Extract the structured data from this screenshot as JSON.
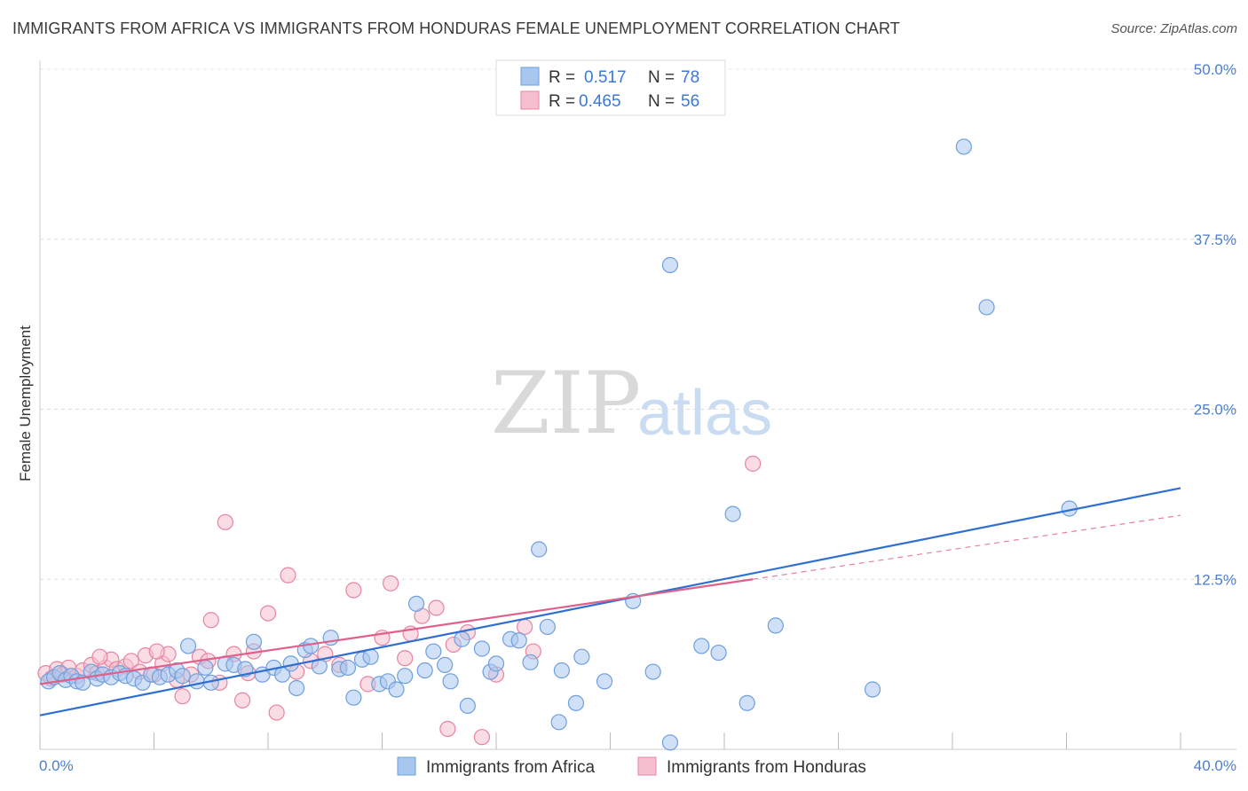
{
  "title": "IMMIGRANTS FROM AFRICA VS IMMIGRANTS FROM HONDURAS FEMALE UNEMPLOYMENT CORRELATION CHART",
  "source": "Source: ZipAtlas.com",
  "watermark": {
    "part1": "ZIP",
    "part2": "atlas"
  },
  "legend": {
    "r_label": "R =",
    "n_label": "N =",
    "rows": [
      {
        "r": "0.517",
        "n": "78"
      },
      {
        "r": "0.465",
        "n": "56"
      }
    ]
  },
  "colors": {
    "africa_fill": "#a9c7ee",
    "africa_stroke": "#6f9fdc",
    "africa_line": "#2f6fd0",
    "honduras_fill": "#f6bfd0",
    "honduras_stroke": "#e8849f",
    "honduras_line": "#e0608a",
    "tick_text": "#4a7fcf"
  },
  "chart_data": {
    "type": "scatter",
    "title": "IMMIGRANTS FROM AFRICA VS IMMIGRANTS FROM HONDURAS FEMALE UNEMPLOYMENT CORRELATION CHART",
    "xlabel": "",
    "ylabel": "Female Unemployment",
    "xlim": [
      0,
      40
    ],
    "ylim": [
      0,
      50
    ],
    "x_tick_labels": [
      "0.0%",
      "40.0%"
    ],
    "y_ticks": [
      {
        "value": 12.5,
        "label": "12.5%"
      },
      {
        "value": 25.0,
        "label": "25.0%"
      },
      {
        "value": 37.5,
        "label": "37.5%"
      },
      {
        "value": 50.0,
        "label": "50.0%"
      }
    ],
    "series": [
      {
        "name": "Immigrants from Africa",
        "points": [
          [
            0.3,
            5.0
          ],
          [
            0.5,
            5.3
          ],
          [
            0.7,
            5.6
          ],
          [
            0.9,
            5.1
          ],
          [
            1.1,
            5.4
          ],
          [
            1.3,
            5.0
          ],
          [
            1.5,
            4.9
          ],
          [
            1.8,
            5.7
          ],
          [
            2.0,
            5.2
          ],
          [
            2.2,
            5.5
          ],
          [
            2.5,
            5.3
          ],
          [
            2.8,
            5.6
          ],
          [
            3.0,
            5.4
          ],
          [
            3.3,
            5.2
          ],
          [
            3.6,
            4.9
          ],
          [
            3.9,
            5.5
          ],
          [
            4.2,
            5.3
          ],
          [
            4.5,
            5.5
          ],
          [
            4.8,
            5.8
          ],
          [
            5.0,
            5.4
          ],
          [
            5.2,
            7.6
          ],
          [
            5.5,
            5.0
          ],
          [
            5.8,
            6.0
          ],
          [
            6.0,
            4.9
          ],
          [
            6.5,
            6.3
          ],
          [
            6.8,
            6.2
          ],
          [
            7.2,
            5.9
          ],
          [
            7.5,
            7.9
          ],
          [
            7.8,
            5.5
          ],
          [
            8.2,
            6.0
          ],
          [
            8.5,
            5.5
          ],
          [
            8.8,
            6.3
          ],
          [
            9.0,
            4.5
          ],
          [
            9.3,
            7.3
          ],
          [
            9.5,
            7.6
          ],
          [
            9.8,
            6.1
          ],
          [
            10.2,
            8.2
          ],
          [
            10.5,
            5.9
          ],
          [
            10.8,
            6.0
          ],
          [
            11.0,
            3.8
          ],
          [
            11.3,
            6.6
          ],
          [
            11.6,
            6.8
          ],
          [
            11.9,
            4.8
          ],
          [
            12.2,
            5.0
          ],
          [
            12.5,
            4.4
          ],
          [
            12.8,
            5.4
          ],
          [
            13.2,
            10.7
          ],
          [
            13.5,
            5.8
          ],
          [
            13.8,
            7.2
          ],
          [
            14.2,
            6.2
          ],
          [
            14.4,
            5.0
          ],
          [
            14.8,
            8.1
          ],
          [
            15.0,
            3.2
          ],
          [
            15.5,
            7.4
          ],
          [
            15.8,
            5.7
          ],
          [
            16.0,
            6.3
          ],
          [
            16.5,
            8.1
          ],
          [
            16.8,
            8.0
          ],
          [
            17.2,
            6.4
          ],
          [
            17.5,
            14.7
          ],
          [
            17.8,
            9.0
          ],
          [
            18.2,
            2.0
          ],
          [
            18.3,
            5.8
          ],
          [
            18.8,
            3.4
          ],
          [
            19.0,
            6.8
          ],
          [
            19.8,
            5.0
          ],
          [
            20.8,
            10.9
          ],
          [
            21.5,
            5.7
          ],
          [
            22.1,
            0.5
          ],
          [
            22.1,
            35.6
          ],
          [
            23.2,
            7.6
          ],
          [
            23.8,
            7.1
          ],
          [
            24.3,
            17.3
          ],
          [
            24.8,
            3.4
          ],
          [
            25.8,
            9.1
          ],
          [
            29.2,
            4.4
          ],
          [
            32.4,
            44.3
          ],
          [
            33.2,
            32.5
          ],
          [
            36.1,
            17.7
          ]
        ],
        "trend": {
          "x": [
            0,
            40
          ],
          "y": [
            2.5,
            19.2
          ]
        }
      },
      {
        "name": "Immigrants from Honduras",
        "points": [
          [
            0.2,
            5.6
          ],
          [
            0.4,
            5.2
          ],
          [
            0.6,
            5.9
          ],
          [
            0.8,
            5.5
          ],
          [
            1.0,
            6.0
          ],
          [
            1.3,
            5.4
          ],
          [
            1.5,
            5.8
          ],
          [
            1.8,
            6.2
          ],
          [
            2.0,
            5.6
          ],
          [
            2.3,
            6.0
          ],
          [
            2.5,
            6.6
          ],
          [
            2.7,
            5.9
          ],
          [
            3.0,
            6.1
          ],
          [
            3.2,
            6.5
          ],
          [
            3.5,
            5.7
          ],
          [
            3.7,
            6.9
          ],
          [
            4.0,
            5.5
          ],
          [
            4.3,
            6.3
          ],
          [
            4.5,
            7.0
          ],
          [
            4.8,
            5.1
          ],
          [
            5.0,
            3.9
          ],
          [
            5.3,
            5.5
          ],
          [
            5.6,
            6.8
          ],
          [
            5.9,
            6.5
          ],
          [
            6.0,
            9.5
          ],
          [
            6.3,
            4.9
          ],
          [
            6.5,
            16.7
          ],
          [
            6.8,
            7.0
          ],
          [
            7.1,
            3.6
          ],
          [
            7.3,
            5.6
          ],
          [
            7.5,
            7.2
          ],
          [
            8.0,
            10.0
          ],
          [
            8.3,
            2.7
          ],
          [
            8.7,
            12.8
          ],
          [
            9.0,
            5.7
          ],
          [
            9.5,
            6.5
          ],
          [
            10.0,
            7.0
          ],
          [
            10.5,
            6.2
          ],
          [
            11.0,
            11.7
          ],
          [
            11.5,
            4.8
          ],
          [
            12.0,
            8.2
          ],
          [
            12.3,
            12.2
          ],
          [
            12.8,
            6.7
          ],
          [
            13.0,
            8.5
          ],
          [
            13.4,
            9.8
          ],
          [
            13.9,
            10.4
          ],
          [
            14.3,
            1.5
          ],
          [
            14.5,
            7.7
          ],
          [
            15.0,
            8.6
          ],
          [
            15.5,
            0.9
          ],
          [
            16.0,
            5.5
          ],
          [
            17.0,
            9.0
          ],
          [
            17.3,
            7.2
          ],
          [
            25.0,
            21.0
          ],
          [
            2.1,
            6.8
          ],
          [
            4.1,
            7.2
          ]
        ],
        "trend": {
          "x": [
            0,
            25
          ],
          "y": [
            4.8,
            12.5
          ]
        },
        "trend_extension": {
          "x": [
            25,
            40
          ],
          "y": [
            12.5,
            17.2
          ],
          "style": "dashed"
        }
      }
    ]
  }
}
